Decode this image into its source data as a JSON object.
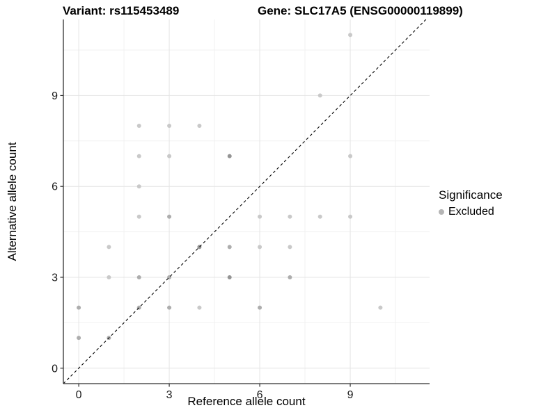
{
  "titles": {
    "left": "Variant: rs115453489",
    "right": "Gene: SLC17A5 (ENSG00000119899)"
  },
  "chart_data": {
    "type": "scatter",
    "xlabel": "Reference allele count",
    "ylabel": "Alternative allele count",
    "xlim": [
      -0.51,
      11.63
    ],
    "ylim": [
      -0.51,
      11.51
    ],
    "x_ticks": [
      0,
      3,
      6,
      9
    ],
    "y_ticks": [
      0,
      3,
      6,
      9
    ],
    "x_minor": [
      1.5,
      4.5,
      7.5,
      10.5
    ],
    "y_minor": [
      1.5,
      4.5,
      7.5,
      10.5
    ],
    "grid": true,
    "identity_line": {
      "style": "dashed",
      "color": "#000000",
      "slope": 1,
      "intercept": 0
    },
    "legend": {
      "position": "right",
      "title": "Significance",
      "items": [
        {
          "label": "Excluded",
          "color": "#b5b5b5"
        }
      ]
    },
    "point_colors": {
      "light": "#c9c9c9",
      "medium": "#adadad",
      "dark": "#949494"
    },
    "points": [
      {
        "x": 9,
        "y": 11,
        "shade": "light"
      },
      {
        "x": 8,
        "y": 9,
        "shade": "light"
      },
      {
        "x": 2,
        "y": 8,
        "shade": "light"
      },
      {
        "x": 3,
        "y": 8,
        "shade": "light"
      },
      {
        "x": 4,
        "y": 8,
        "shade": "light"
      },
      {
        "x": 2,
        "y": 7,
        "shade": "light"
      },
      {
        "x": 3,
        "y": 7,
        "shade": "light"
      },
      {
        "x": 5,
        "y": 7,
        "shade": "dark"
      },
      {
        "x": 9,
        "y": 7,
        "shade": "light"
      },
      {
        "x": 2,
        "y": 6,
        "shade": "light"
      },
      {
        "x": 2,
        "y": 5,
        "shade": "light"
      },
      {
        "x": 3,
        "y": 5,
        "shade": "medium"
      },
      {
        "x": 6,
        "y": 5,
        "shade": "light"
      },
      {
        "x": 7,
        "y": 5,
        "shade": "light"
      },
      {
        "x": 8,
        "y": 5,
        "shade": "light"
      },
      {
        "x": 9,
        "y": 5,
        "shade": "light"
      },
      {
        "x": 1,
        "y": 4,
        "shade": "light"
      },
      {
        "x": 4,
        "y": 4,
        "shade": "dark"
      },
      {
        "x": 5,
        "y": 4,
        "shade": "medium"
      },
      {
        "x": 6,
        "y": 4,
        "shade": "light"
      },
      {
        "x": 7,
        "y": 4,
        "shade": "light"
      },
      {
        "x": 1,
        "y": 3,
        "shade": "light"
      },
      {
        "x": 2,
        "y": 3,
        "shade": "medium"
      },
      {
        "x": 3,
        "y": 3,
        "shade": "medium"
      },
      {
        "x": 5,
        "y": 3,
        "shade": "dark"
      },
      {
        "x": 7,
        "y": 3,
        "shade": "medium"
      },
      {
        "x": 0,
        "y": 2,
        "shade": "medium"
      },
      {
        "x": 2,
        "y": 2,
        "shade": "medium"
      },
      {
        "x": 3,
        "y": 2,
        "shade": "medium"
      },
      {
        "x": 4,
        "y": 2,
        "shade": "light"
      },
      {
        "x": 6,
        "y": 2,
        "shade": "medium"
      },
      {
        "x": 10,
        "y": 2,
        "shade": "light"
      },
      {
        "x": 0,
        "y": 1,
        "shade": "medium"
      },
      {
        "x": 1,
        "y": 1,
        "shade": "medium"
      }
    ]
  }
}
